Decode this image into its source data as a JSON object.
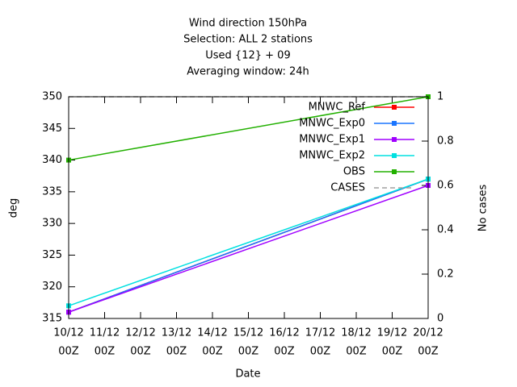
{
  "chart_data": {
    "type": "line",
    "title": [
      "Wind direction 150hPa",
      "Selection: ALL       2 stations",
      "Used {12} + 09",
      "Averaging window: 24h"
    ],
    "xlabel": "Date",
    "ylabel": "deg",
    "y2label": "No cases",
    "xlim": [
      0,
      10
    ],
    "xticks": [
      {
        "value": 0,
        "label": [
          "10/12",
          "00Z"
        ]
      },
      {
        "value": 1,
        "label": [
          "11/12",
          "00Z"
        ]
      },
      {
        "value": 2,
        "label": [
          "12/12",
          "00Z"
        ]
      },
      {
        "value": 3,
        "label": [
          "13/12",
          "00Z"
        ]
      },
      {
        "value": 4,
        "label": [
          "14/12",
          "00Z"
        ]
      },
      {
        "value": 5,
        "label": [
          "15/12",
          "00Z"
        ]
      },
      {
        "value": 6,
        "label": [
          "16/12",
          "00Z"
        ]
      },
      {
        "value": 7,
        "label": [
          "17/12",
          "00Z"
        ]
      },
      {
        "value": 8,
        "label": [
          "18/12",
          "00Z"
        ]
      },
      {
        "value": 9,
        "label": [
          "19/12",
          "00Z"
        ]
      },
      {
        "value": 10,
        "label": [
          "20/12",
          "00Z"
        ]
      }
    ],
    "ylim": [
      315,
      350
    ],
    "yticks": [
      315,
      320,
      325,
      330,
      335,
      340,
      345,
      350
    ],
    "y2lim": [
      0,
      1
    ],
    "y2ticks": [
      0,
      0.2,
      0.4,
      0.6,
      0.8,
      1
    ],
    "legend": "top-right",
    "series": [
      {
        "name": "CASES",
        "color": "#a0a0a0",
        "axis": "y2",
        "dashed": true,
        "x": [
          0,
          10
        ],
        "values": [
          1,
          1
        ]
      },
      {
        "name": "MNWC_Ref",
        "color": "#ff0000",
        "x": [
          0,
          10
        ],
        "values": [
          316,
          337
        ]
      },
      {
        "name": "MNWC_Exp0",
        "color": "#1a75ff",
        "x": [
          0,
          10
        ],
        "values": [
          316,
          337
        ]
      },
      {
        "name": "MNWC_Exp1",
        "color": "#a000ff",
        "x": [
          0,
          10
        ],
        "values": [
          316,
          336
        ]
      },
      {
        "name": "MNWC_Exp2",
        "color": "#00e0e0",
        "x": [
          0,
          10
        ],
        "values": [
          317,
          337
        ]
      },
      {
        "name": "OBS",
        "color": "#22b000",
        "x": [
          0,
          10
        ],
        "values": [
          340,
          350
        ]
      }
    ]
  }
}
